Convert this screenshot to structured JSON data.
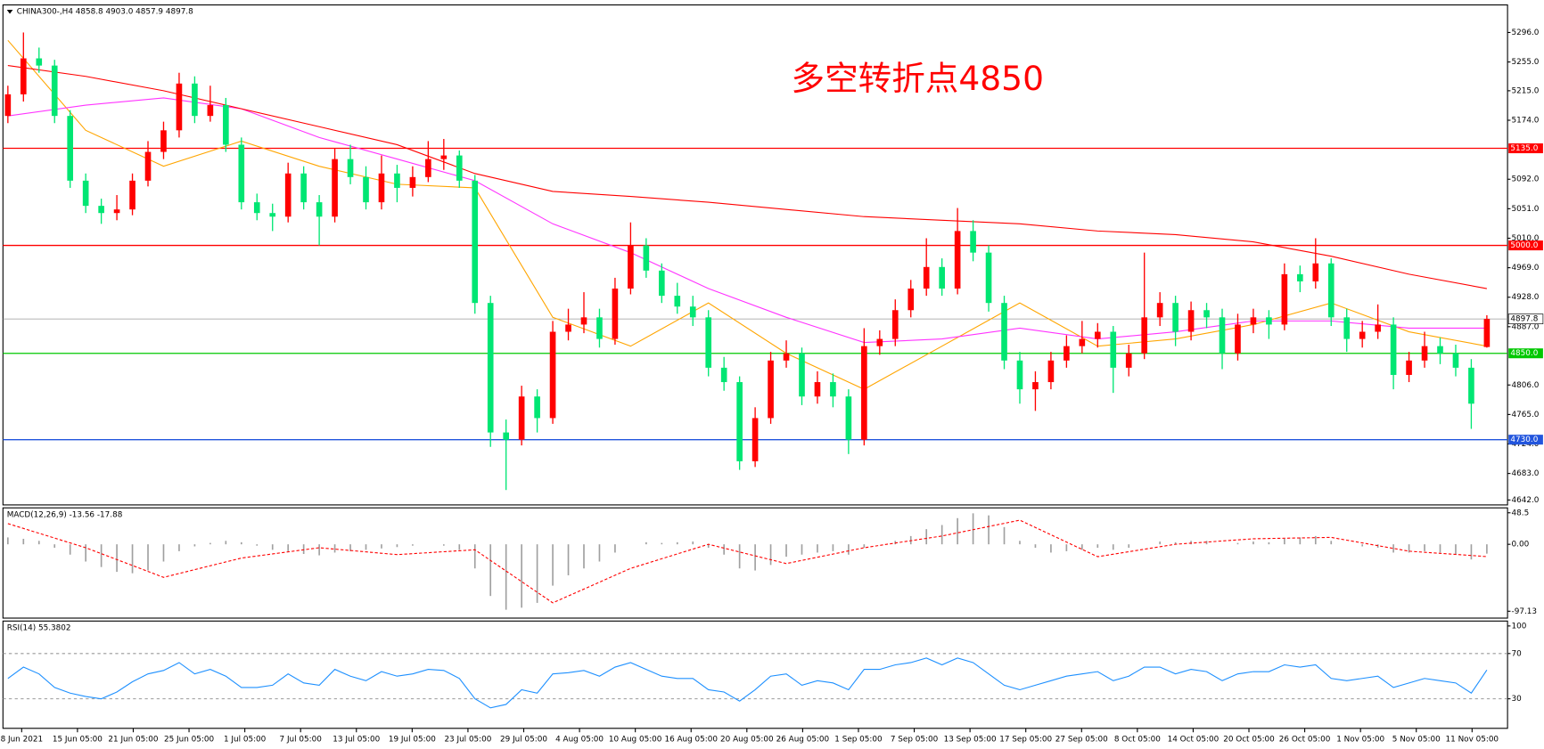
{
  "chart_data": [
    {
      "type": "candlestick",
      "title": "CHINA300-,H4  4858.8 4903.0 4857.9 4897.8",
      "annotation": "多空转折点4850",
      "up_color": "#ff0000",
      "down_color": "#00e673",
      "ylim": [
        4639.3,
        5334.3
      ],
      "yticks": [
        {
          "value": 5296,
          "label": "5296.0"
        },
        {
          "value": 5255,
          "label": "5255.0"
        },
        {
          "value": 5215,
          "label": "5215.0"
        },
        {
          "value": 5174,
          "label": "5174.0"
        },
        {
          "value": 5092,
          "label": "5092.0"
        },
        {
          "value": 5051,
          "label": "5051.0"
        },
        {
          "value": 5010,
          "label": "5010.0"
        },
        {
          "value": 4969,
          "label": "4969.0"
        },
        {
          "value": 4928,
          "label": "4928.0"
        },
        {
          "value": 4887,
          "label": "4887.0"
        },
        {
          "value": 4806,
          "label": "4806.0"
        },
        {
          "value": 4765,
          "label": "4765.0"
        },
        {
          "value": 4724,
          "label": "4724.0"
        },
        {
          "value": 4683,
          "label": "4683.0"
        },
        {
          "value": 4642,
          "label": "4642.0"
        }
      ],
      "levels": [
        {
          "value": 5135,
          "label": "5135.0",
          "color": "#ff0000"
        },
        {
          "value": 5000,
          "label": "5000.0",
          "color": "#ff0000"
        },
        {
          "value": 4897.8,
          "label": "4897.8",
          "color": "#999999"
        },
        {
          "value": 4850,
          "label": "4850.0",
          "color": "#00c800"
        },
        {
          "value": 4730,
          "label": "4730.0",
          "color": "#2255dd"
        }
      ],
      "x_labels": [
        "8 Jun 2021",
        "15 Jun 05:00",
        "21 Jun 05:00",
        "25 Jun 05:00",
        "1 Jul 05:00",
        "7 Jul 05:00",
        "13 Jul 05:00",
        "19 Jul 05:00",
        "23 Jul 05:00",
        "29 Jul 05:00",
        "4 Aug 05:00",
        "10 Aug 05:00",
        "16 Aug 05:00",
        "20 Aug 05:00",
        "26 Aug 05:00",
        "1 Sep 05:00",
        "7 Sep 05:00",
        "13 Sep 05:00",
        "17 Sep 05:00",
        "27 Sep 05:00",
        "8 Oct 05:00",
        "14 Oct 05:00",
        "20 Oct 05:00",
        "26 Oct 05:00",
        "1 Nov 05:00",
        "5 Nov 05:00",
        "11 Nov 05:00"
      ],
      "ohlc": [
        [
          5180,
          5222,
          5170,
          5210
        ],
        [
          5210,
          5296,
          5200,
          5260
        ],
        [
          5260,
          5275,
          5240,
          5250
        ],
        [
          5250,
          5258,
          5170,
          5180
        ],
        [
          5180,
          5188,
          5080,
          5090
        ],
        [
          5090,
          5100,
          5045,
          5055
        ],
        [
          5055,
          5065,
          5030,
          5045
        ],
        [
          5045,
          5070,
          5035,
          5050
        ],
        [
          5050,
          5100,
          5042,
          5090
        ],
        [
          5090,
          5145,
          5082,
          5130
        ],
        [
          5130,
          5172,
          5120,
          5160
        ],
        [
          5160,
          5240,
          5150,
          5225
        ],
        [
          5225,
          5235,
          5170,
          5180
        ],
        [
          5180,
          5222,
          5172,
          5195
        ],
        [
          5195,
          5205,
          5130,
          5140
        ],
        [
          5140,
          5150,
          5050,
          5060
        ],
        [
          5060,
          5072,
          5035,
          5045
        ],
        [
          5045,
          5058,
          5020,
          5040
        ],
        [
          5040,
          5115,
          5032,
          5100
        ],
        [
          5100,
          5110,
          5050,
          5060
        ],
        [
          5060,
          5070,
          5000,
          5040
        ],
        [
          5040,
          5135,
          5032,
          5120
        ],
        [
          5120,
          5140,
          5085,
          5095
        ],
        [
          5095,
          5110,
          5050,
          5060
        ],
        [
          5060,
          5125,
          5050,
          5100
        ],
        [
          5100,
          5112,
          5060,
          5080
        ],
        [
          5080,
          5110,
          5068,
          5095
        ],
        [
          5095,
          5145,
          5088,
          5120
        ],
        [
          5120,
          5148,
          5105,
          5125
        ],
        [
          5125,
          5132,
          5080,
          5090
        ],
        [
          5090,
          5098,
          4905,
          4920
        ],
        [
          4920,
          4930,
          4720,
          4740
        ],
        [
          4740,
          4758,
          4660,
          4730
        ],
        [
          4730,
          4805,
          4722,
          4790
        ],
        [
          4790,
          4800,
          4740,
          4760
        ],
        [
          4760,
          4895,
          4752,
          4880
        ],
        [
          4880,
          4912,
          4868,
          4890
        ],
        [
          4890,
          4935,
          4878,
          4900
        ],
        [
          4900,
          4912,
          4858,
          4870
        ],
        [
          4870,
          4955,
          4862,
          4940
        ],
        [
          4940,
          5032,
          4932,
          5000
        ],
        [
          5000,
          5010,
          4955,
          4965
        ],
        [
          4965,
          4975,
          4920,
          4930
        ],
        [
          4930,
          4948,
          4905,
          4915
        ],
        [
          4915,
          4930,
          4888,
          4900
        ],
        [
          4900,
          4910,
          4818,
          4830
        ],
        [
          4830,
          4845,
          4798,
          4810
        ],
        [
          4810,
          4818,
          4688,
          4700
        ],
        [
          4700,
          4775,
          4692,
          4760
        ],
        [
          4760,
          4852,
          4752,
          4840
        ],
        [
          4840,
          4868,
          4830,
          4850
        ],
        [
          4850,
          4858,
          4778,
          4790
        ],
        [
          4790,
          4825,
          4780,
          4810
        ],
        [
          4810,
          4822,
          4775,
          4790
        ],
        [
          4790,
          4800,
          4710,
          4730
        ],
        [
          4730,
          4885,
          4722,
          4860
        ],
        [
          4860,
          4882,
          4848,
          4870
        ],
        [
          4870,
          4925,
          4860,
          4910
        ],
        [
          4910,
          4952,
          4900,
          4940
        ],
        [
          4940,
          5010,
          4930,
          4970
        ],
        [
          4970,
          4982,
          4930,
          4940
        ],
        [
          4940,
          5052,
          4932,
          5020
        ],
        [
          5020,
          5035,
          4978,
          4990
        ],
        [
          4990,
          5000,
          4908,
          4920
        ],
        [
          4920,
          4930,
          4828,
          4840
        ],
        [
          4840,
          4852,
          4780,
          4800
        ],
        [
          4800,
          4825,
          4770,
          4810
        ],
        [
          4810,
          4852,
          4800,
          4840
        ],
        [
          4840,
          4875,
          4830,
          4860
        ],
        [
          4860,
          4895,
          4850,
          4870
        ],
        [
          4870,
          4892,
          4858,
          4880
        ],
        [
          4880,
          4888,
          4795,
          4830
        ],
        [
          4830,
          4862,
          4818,
          4850
        ],
        [
          4850,
          4990,
          4842,
          4900
        ],
        [
          4900,
          4935,
          4888,
          4920
        ],
        [
          4920,
          4930,
          4860,
          4880
        ],
        [
          4880,
          4922,
          4868,
          4910
        ],
        [
          4910,
          4920,
          4885,
          4900
        ],
        [
          4900,
          4912,
          4828,
          4850
        ],
        [
          4850,
          4905,
          4840,
          4890
        ],
        [
          4890,
          4912,
          4878,
          4900
        ],
        [
          4900,
          4910,
          4870,
          4890
        ],
        [
          4890,
          4975,
          4882,
          4960
        ],
        [
          4960,
          4972,
          4935,
          4950
        ],
        [
          4950,
          5010,
          4940,
          4975
        ],
        [
          4975,
          4982,
          4888,
          4900
        ],
        [
          4900,
          4912,
          4852,
          4870
        ],
        [
          4870,
          4895,
          4858,
          4880
        ],
        [
          4880,
          4918,
          4870,
          4890
        ],
        [
          4890,
          4900,
          4800,
          4820
        ],
        [
          4820,
          4852,
          4810,
          4840
        ],
        [
          4840,
          4880,
          4830,
          4860
        ],
        [
          4860,
          4872,
          4835,
          4850
        ],
        [
          4850,
          4862,
          4818,
          4830
        ],
        [
          4830,
          4842,
          4745,
          4780
        ],
        [
          4858.8,
          4903,
          4857.9,
          4897.8
        ]
      ],
      "lines": [
        {
          "color": "#ffa500",
          "x": [
            0,
            5,
            10,
            15,
            20,
            25,
            30,
            35,
            40,
            45,
            50,
            55,
            60,
            65,
            70,
            75,
            80,
            85,
            90,
            95
          ],
          "values": [
            5285,
            5160,
            5110,
            5145,
            5110,
            5085,
            5080,
            4900,
            4860,
            4920,
            4850,
            4800,
            4860,
            4920,
            4860,
            4870,
            4890,
            4920,
            4880,
            4860
          ]
        },
        {
          "color": "#ff33ff",
          "x": [
            0,
            5,
            10,
            15,
            20,
            25,
            30,
            35,
            40,
            45,
            50,
            55,
            60,
            65,
            70,
            75,
            80,
            85,
            90,
            95
          ],
          "values": [
            5180,
            5195,
            5205,
            5190,
            5150,
            5120,
            5090,
            5030,
            4990,
            4940,
            4900,
            4865,
            4870,
            4885,
            4870,
            4880,
            4895,
            4895,
            4885,
            4885
          ]
        },
        {
          "color": "#ff0000",
          "x": [
            0,
            5,
            10,
            15,
            20,
            25,
            30,
            35,
            40,
            45,
            50,
            55,
            60,
            65,
            70,
            75,
            80,
            85,
            90,
            95
          ],
          "values": [
            5250,
            5235,
            5215,
            5190,
            5165,
            5140,
            5100,
            5075,
            5068,
            5060,
            5050,
            5040,
            5035,
            5030,
            5020,
            5015,
            5005,
            4985,
            4960,
            4940
          ]
        }
      ]
    },
    {
      "type": "macd",
      "title": "MACD(12,26,9) -13.56 -17.88",
      "ylim": [
        -107.1,
        52.9
      ],
      "yticks": [
        48.5,
        {
          "value": 0,
          "label": "0.00"
        },
        -97.13
      ],
      "hist_color": "#a0a0a0",
      "values": [
        10,
        8,
        5,
        -5,
        -15,
        -25,
        -33,
        -40,
        -42,
        -38,
        -25,
        -10,
        -3,
        2,
        5,
        3,
        -2,
        -8,
        -10,
        -14,
        -16,
        -12,
        -10,
        -8,
        -6,
        -4,
        -2,
        0,
        -2,
        -8,
        -35,
        -75,
        -95,
        -92,
        -85,
        -60,
        -45,
        -35,
        -25,
        -12,
        0,
        3,
        2,
        3,
        4,
        -5,
        -15,
        -35,
        -38,
        -30,
        -18,
        -15,
        -12,
        -10,
        -15,
        -5,
        0,
        5,
        12,
        22,
        28,
        38,
        45,
        42,
        25,
        5,
        -5,
        -12,
        -10,
        -8,
        -5,
        -8,
        -5,
        0,
        4,
        3,
        5,
        5,
        0,
        2,
        4,
        3,
        8,
        10,
        12,
        5,
        0,
        -3,
        -5,
        -12,
        -12,
        -10,
        -12,
        -15,
        -22,
        -13.56
      ],
      "signal": {
        "color": "#ff0000",
        "x": [
          0,
          5,
          10,
          15,
          20,
          25,
          30,
          35,
          40,
          45,
          50,
          55,
          60,
          65,
          70,
          75,
          80,
          85,
          90,
          95
        ],
        "values": [
          30,
          -5,
          -48,
          -20,
          -5,
          -15,
          -8,
          -85,
          -35,
          0,
          -28,
          -5,
          12,
          35,
          -18,
          0,
          8,
          10,
          -10,
          -17.88
        ]
      }
    },
    {
      "type": "rsi",
      "title": "RSI(14) 55.3802",
      "ylim": [
        3.9,
        98.7
      ],
      "yticks": [
        100,
        70,
        30
      ],
      "color": "#1e90ff",
      "values": [
        48,
        58,
        52,
        40,
        35,
        32,
        30,
        36,
        45,
        52,
        55,
        62,
        52,
        56,
        50,
        40,
        40,
        42,
        52,
        44,
        42,
        56,
        50,
        46,
        54,
        50,
        52,
        56,
        55,
        48,
        30,
        22,
        25,
        38,
        35,
        52,
        53,
        55,
        50,
        58,
        62,
        56,
        50,
        48,
        48,
        38,
        36,
        28,
        38,
        50,
        52,
        42,
        46,
        44,
        38,
        56,
        56,
        60,
        62,
        66,
        60,
        66,
        62,
        52,
        42,
        38,
        42,
        46,
        50,
        52,
        54,
        46,
        50,
        58,
        58,
        52,
        56,
        54,
        46,
        52,
        54,
        54,
        60,
        58,
        60,
        48,
        46,
        48,
        50,
        40,
        44,
        48,
        46,
        44,
        35,
        55.3802
      ]
    }
  ]
}
